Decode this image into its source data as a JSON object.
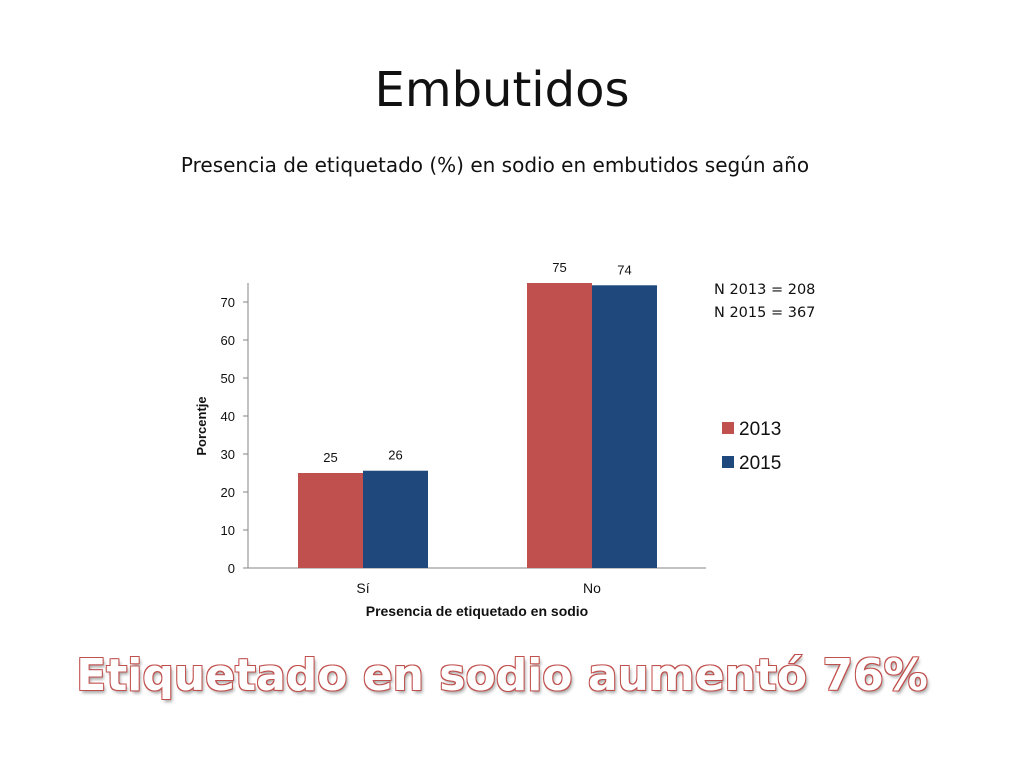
{
  "slide": {
    "title": "Embutidos",
    "subtitle": "Presencia de etiquetado (%) en sodio en embutidos según año",
    "notes": [
      "N 2013 = 208",
      "N 2015 = 367"
    ],
    "conclusion": "Etiquetado en sodio aumentó 76%"
  },
  "chart_data": {
    "type": "bar",
    "categories": [
      "Sí",
      "No"
    ],
    "series": [
      {
        "name": "2013",
        "values": [
          25,
          75
        ],
        "labels": [
          "25",
          "75"
        ],
        "color": "#c0504d"
      },
      {
        "name": "2015",
        "values": [
          25.6,
          74.4
        ],
        "labels": [
          "26",
          "74"
        ],
        "color": "#1f497d"
      }
    ],
    "xlabel": "Presencia de etiquetado en sodio",
    "ylabel": "Porcentje",
    "ylim": [
      0,
      70
    ],
    "yticks": [
      "0",
      "10",
      "20",
      "30",
      "40",
      "50",
      "60",
      "70"
    ],
    "grid": false,
    "legend": "right"
  }
}
